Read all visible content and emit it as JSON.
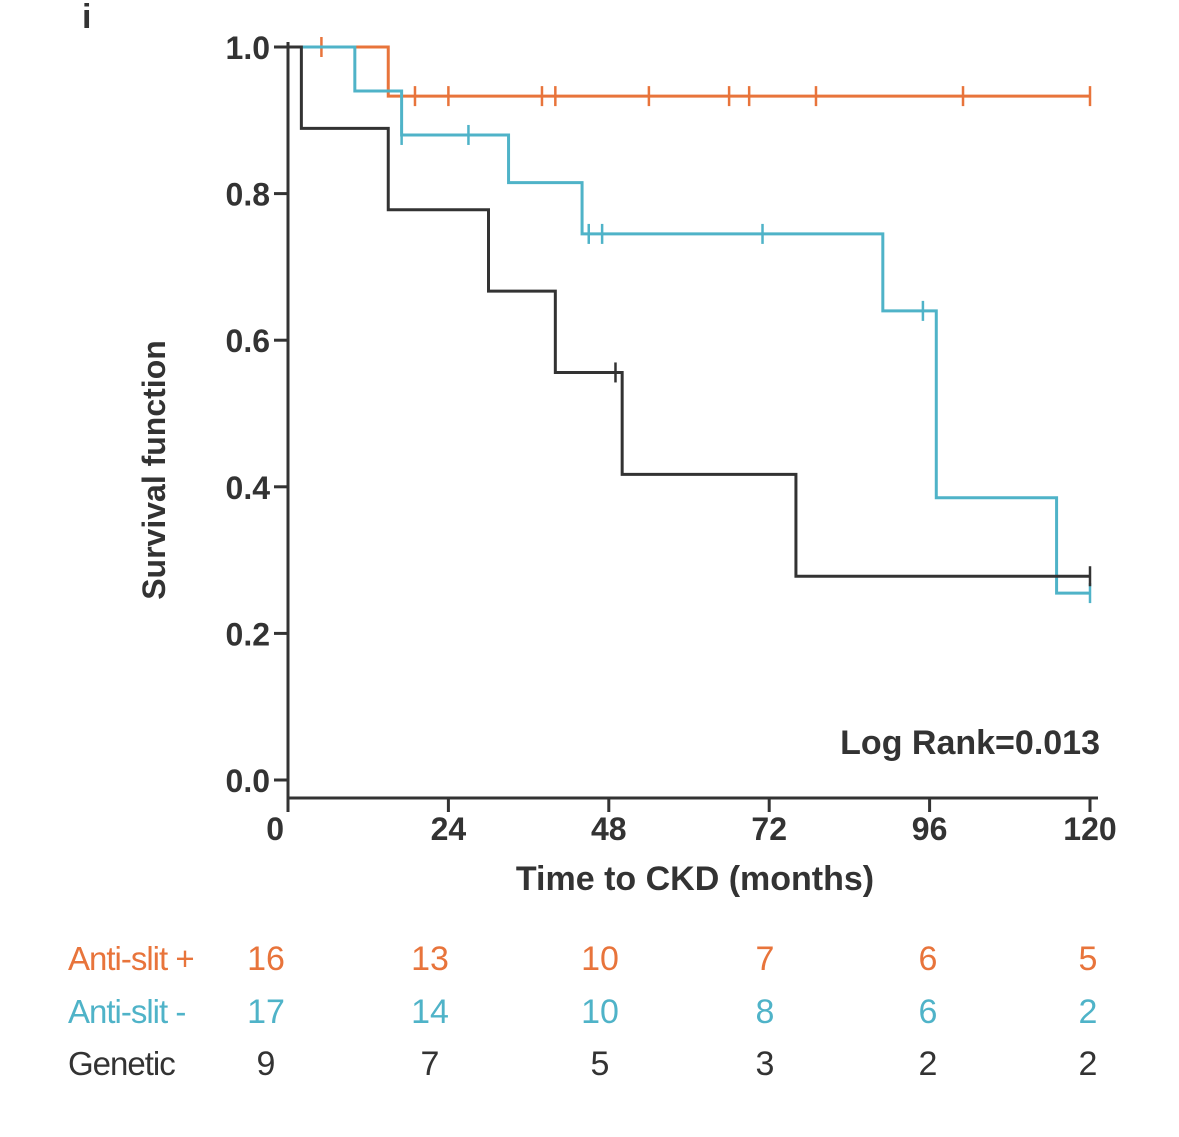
{
  "panel_label": "i",
  "chart_data": {
    "type": "line",
    "subtype": "kaplan-meier",
    "xlabel": "Time to CKD (months)",
    "ylabel": "Survival function",
    "xlim": [
      0,
      120
    ],
    "ylim": [
      0,
      1
    ],
    "xticks": [
      0,
      24,
      48,
      72,
      96,
      120
    ],
    "xtick_labels": [
      "0",
      "24",
      "48",
      "72",
      "96",
      "120"
    ],
    "yticks": [
      0,
      0.2,
      0.4,
      0.6,
      0.8,
      1.0
    ],
    "ytick_labels": [
      "0.0",
      "0.2",
      "0.4",
      "0.6",
      "0.8",
      "1.0"
    ],
    "annotation": "Log Rank=0.013",
    "series": [
      {
        "name": "Anti-slit +",
        "color": "#E8743B",
        "steps": [
          [
            0,
            1.0
          ],
          [
            15,
            0.933
          ],
          [
            120,
            0.933
          ]
        ],
        "censors": [
          [
            5,
            1.0
          ],
          [
            19,
            0.933
          ],
          [
            24,
            0.933
          ],
          [
            38,
            0.933
          ],
          [
            40,
            0.933
          ],
          [
            54,
            0.933
          ],
          [
            66,
            0.933
          ],
          [
            69,
            0.933
          ],
          [
            79,
            0.933
          ],
          [
            101,
            0.933
          ],
          [
            120,
            0.933
          ]
        ]
      },
      {
        "name": "Anti-slit -",
        "color": "#4FB3C8",
        "steps": [
          [
            0,
            1.0
          ],
          [
            10,
            0.94
          ],
          [
            17,
            0.88
          ],
          [
            33,
            0.815
          ],
          [
            44,
            0.745
          ],
          [
            89,
            0.64
          ],
          [
            97,
            0.385
          ],
          [
            115,
            0.255
          ],
          [
            120,
            0.255
          ]
        ],
        "censors": [
          [
            17,
            0.88
          ],
          [
            27,
            0.88
          ],
          [
            45,
            0.745
          ],
          [
            47,
            0.745
          ],
          [
            71,
            0.745
          ],
          [
            95,
            0.64
          ],
          [
            120,
            0.255
          ]
        ]
      },
      {
        "name": "Genetic",
        "color": "#333333",
        "steps": [
          [
            0,
            1.0
          ],
          [
            2,
            0.889
          ],
          [
            15,
            0.778
          ],
          [
            30,
            0.667
          ],
          [
            40,
            0.556
          ],
          [
            50,
            0.417
          ],
          [
            76,
            0.278
          ],
          [
            120,
            0.278
          ]
        ],
        "censors": [
          [
            49,
            0.556
          ],
          [
            120,
            0.278
          ]
        ]
      }
    ]
  },
  "risk_table": {
    "times": [
      0,
      24,
      48,
      72,
      96,
      120
    ],
    "rows": [
      {
        "label": "Anti-slit +",
        "color": "#E8743B",
        "counts": [
          "16",
          "13",
          "10",
          "7",
          "6",
          "5"
        ]
      },
      {
        "label": "Anti-slit -",
        "color": "#4FB3C8",
        "counts": [
          "17",
          "14",
          "10",
          "8",
          "6",
          "2"
        ]
      },
      {
        "label": "Genetic",
        "color": "#333333",
        "counts": [
          "9",
          "7",
          "5",
          "3",
          "2",
          "2"
        ]
      }
    ]
  }
}
